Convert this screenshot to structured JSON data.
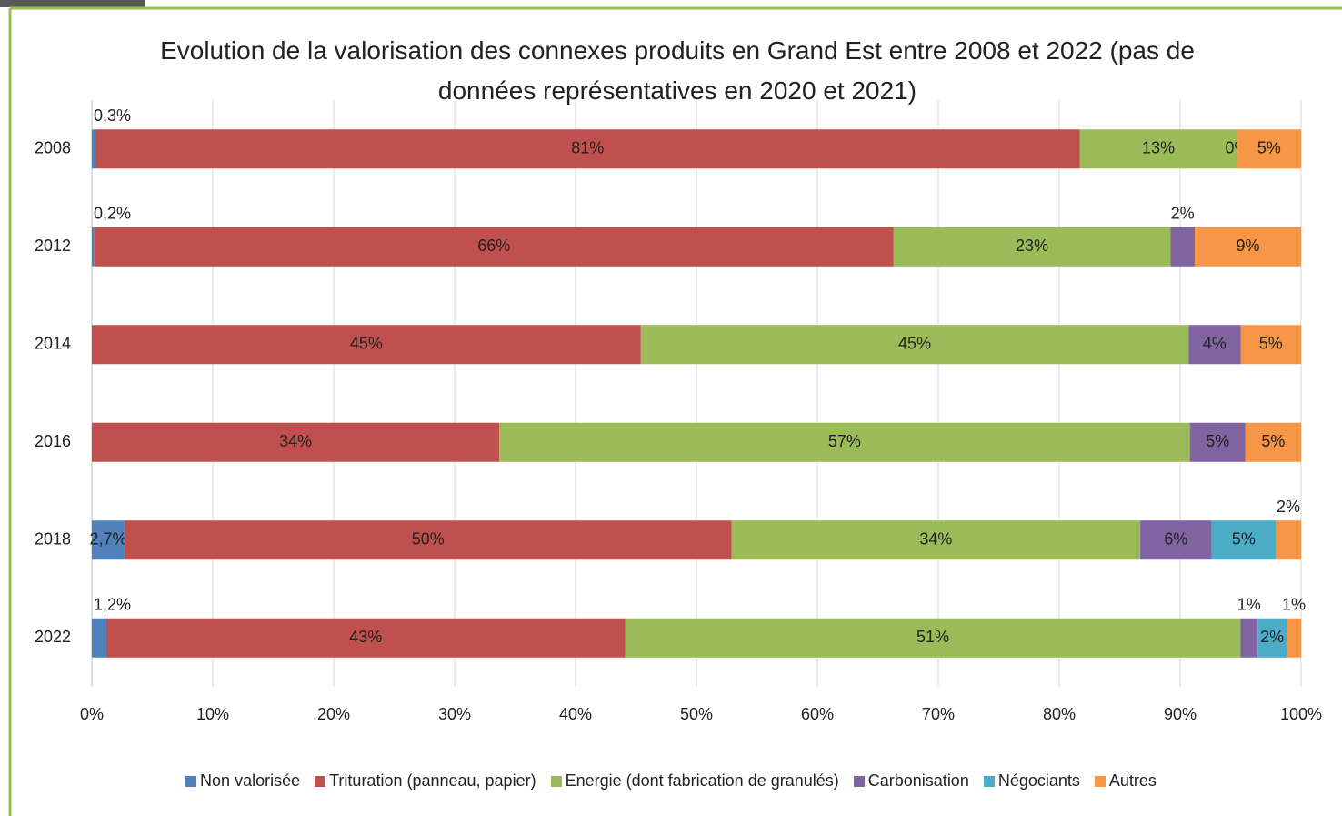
{
  "chart_data": {
    "type": "stacked_barh",
    "title": "Evolution de la valorisation des connexes produits en Grand Est entre 2008 et 2022 (pas de données représentatives en 2020 et 2021)",
    "categories": [
      "2008",
      "2012",
      "2014",
      "2016",
      "2018",
      "2022"
    ],
    "series": [
      {
        "name": "Non valorisée",
        "color": "#4f81bd",
        "values": [
          0.3,
          0.2,
          null,
          null,
          2.7,
          1.2
        ],
        "value_labels": [
          "0,3%",
          "0,2%",
          null,
          null,
          "2,7%",
          "1,2%"
        ]
      },
      {
        "name": "Trituration (panneau, papier)",
        "color": "#c0504d",
        "values": [
          81.4,
          66.1,
          45.4,
          33.7,
          50.2,
          42.9
        ],
        "value_labels": [
          "81%",
          "66%",
          "45%",
          "34%",
          "50%",
          "43%"
        ]
      },
      {
        "name": "Energie (dont fabrication de granulés)",
        "color": "#9bbb59",
        "values": [
          13.0,
          22.9,
          45.3,
          57.1,
          33.8,
          50.9
        ],
        "value_labels": [
          "13%",
          "23%",
          "45%",
          "57%",
          "34%",
          "51%"
        ]
      },
      {
        "name": "Carbonisation",
        "color": "#8064a2",
        "values": [
          0,
          2.0,
          4.3,
          4.6,
          5.9,
          1.4
        ],
        "value_labels": [
          "0%",
          "2%",
          "4%",
          "5%",
          "6%",
          "1%"
        ]
      },
      {
        "name": "Négociants",
        "color": "#4bacc6",
        "values": [
          null,
          null,
          null,
          null,
          5.3,
          2.4
        ],
        "value_labels": [
          null,
          null,
          null,
          null,
          "5%",
          "2%"
        ]
      },
      {
        "name": "Autres",
        "color": "#f79646",
        "values": [
          5.3,
          8.8,
          5.0,
          4.6,
          2.1,
          1.2
        ],
        "value_labels": [
          "5%",
          "9%",
          "5%",
          "5%",
          "2%",
          "1%"
        ]
      }
    ],
    "xlim": [
      0,
      100
    ],
    "xticks": [
      {
        "value": 0,
        "label": "0%"
      },
      {
        "value": 10,
        "label": "10%"
      },
      {
        "value": 20,
        "label": "20%"
      },
      {
        "value": 30,
        "label": "30%"
      },
      {
        "value": 40,
        "label": "40%"
      },
      {
        "value": 50,
        "label": "50%"
      },
      {
        "value": 60,
        "label": "60%"
      },
      {
        "value": 70,
        "label": "70%"
      },
      {
        "value": 80,
        "label": "80%"
      },
      {
        "value": 90,
        "label": "90%"
      },
      {
        "value": 100,
        "label": "100%"
      }
    ],
    "grid": true,
    "legend": "bottom"
  }
}
